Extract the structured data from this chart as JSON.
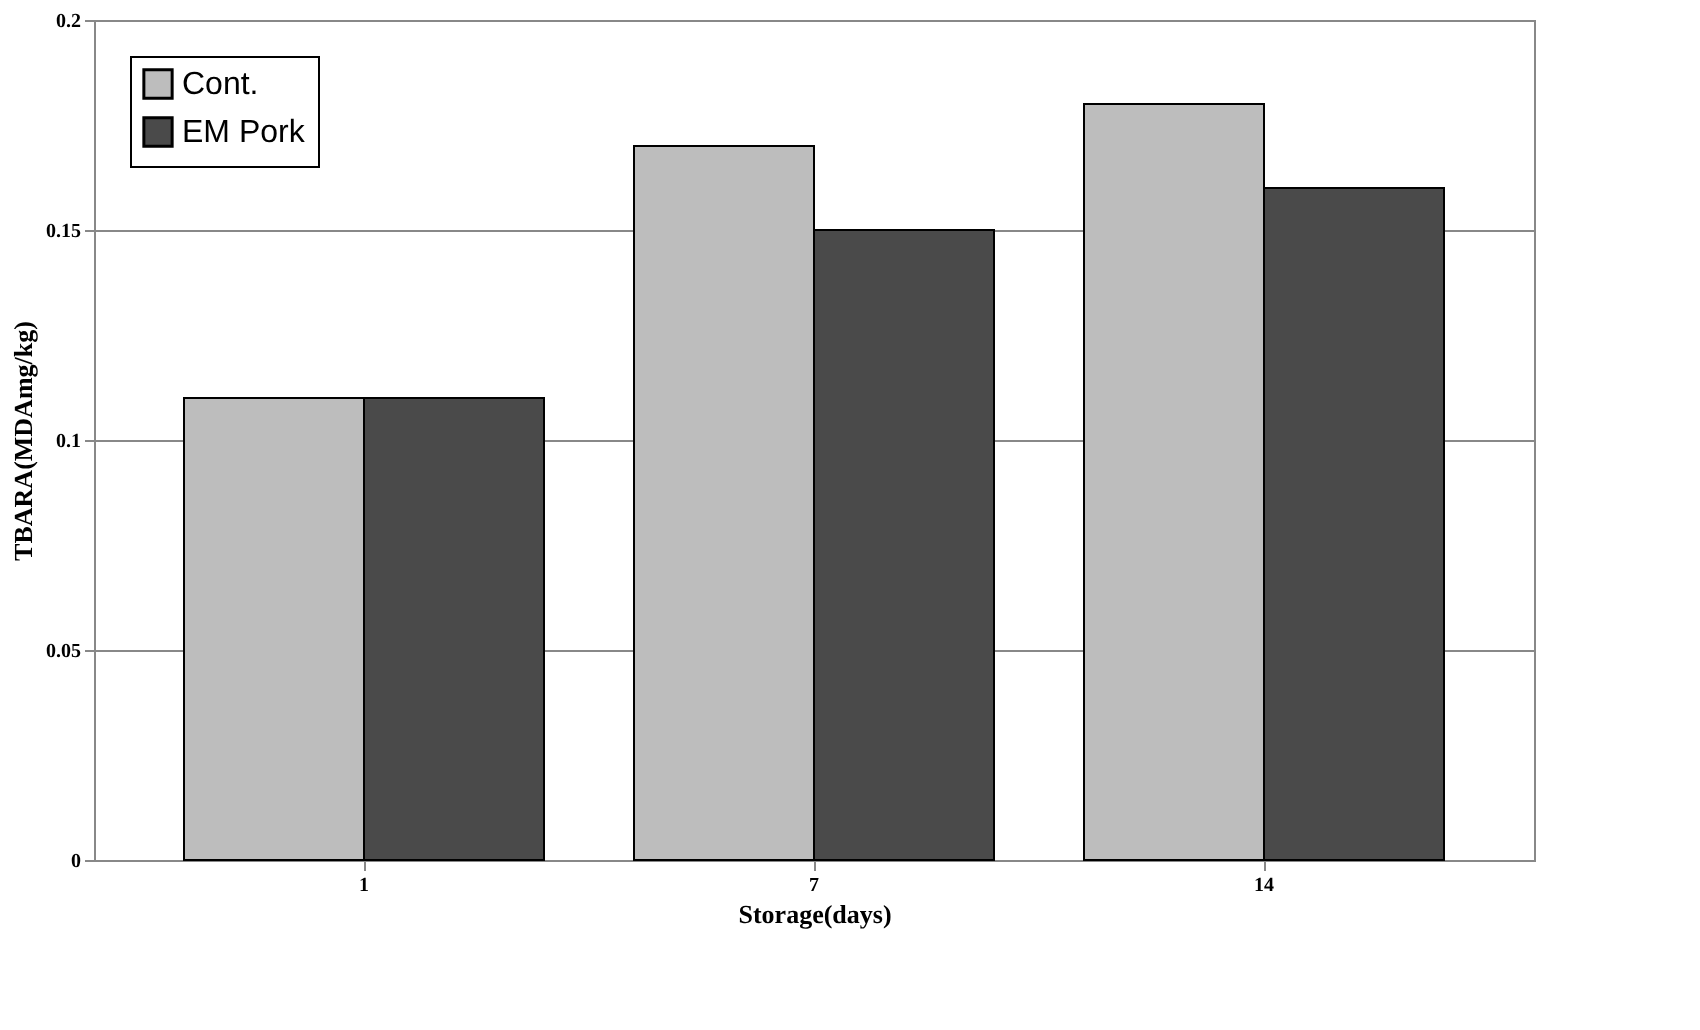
{
  "chart_data": {
    "type": "bar",
    "xlabel": "Storage(days)",
    "ylabel": "TBARA(MDAmg/kg)",
    "categories": [
      "1",
      "7",
      "14"
    ],
    "series": [
      {
        "name": "Cont.",
        "color": "#bdbdbd",
        "values": [
          0.11,
          0.17,
          0.18
        ]
      },
      {
        "name": "EM Pork",
        "color": "#4a4a4a",
        "values": [
          0.11,
          0.15,
          0.16
        ]
      }
    ],
    "ylim": [
      0,
      0.2
    ],
    "yticks": [
      0,
      0.05,
      0.1,
      0.15,
      0.2
    ],
    "grid": "y",
    "legend": "top left"
  }
}
